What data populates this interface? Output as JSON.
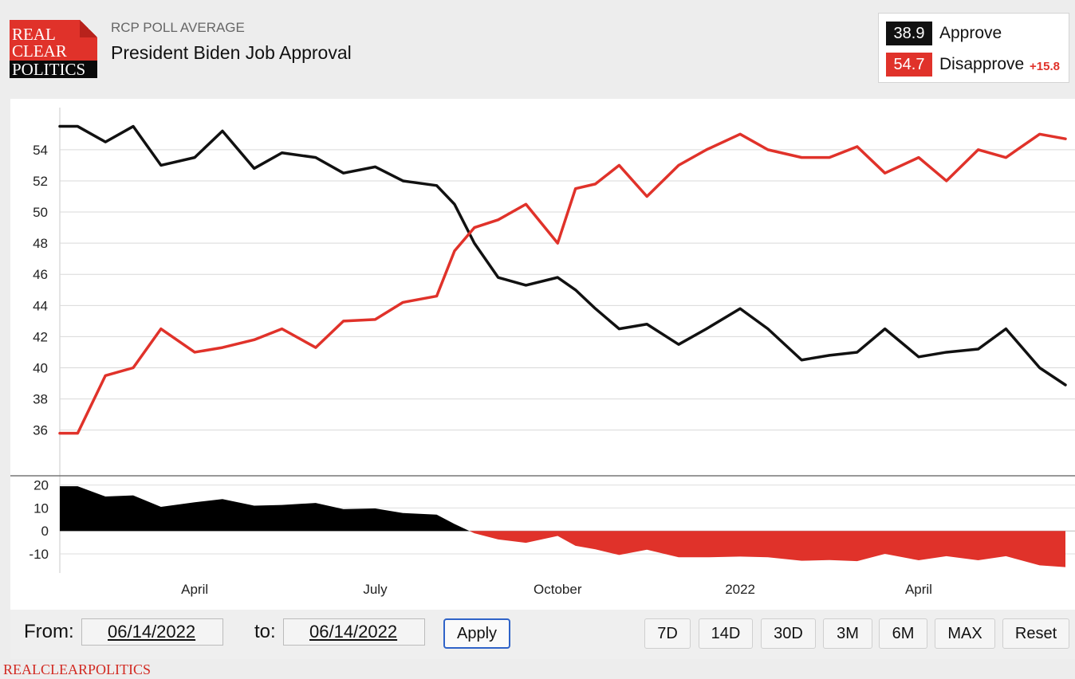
{
  "header": {
    "logo_lines": [
      "REAL",
      "CLEAR",
      "POLITICS"
    ],
    "kicker": "RCP POLL AVERAGE",
    "title": "President Biden Job Approval"
  },
  "legend": {
    "approve": {
      "value": "38.9",
      "label": "Approve",
      "color": "#111111"
    },
    "disapprove": {
      "value": "54.7",
      "label": "Disapprove",
      "color": "#e0322a"
    },
    "spread": "+15.8"
  },
  "controls": {
    "from_label": "From:",
    "from_value": "06/14/2022",
    "to_label": "to:",
    "to_value": "06/14/2022",
    "apply_label": "Apply",
    "range_buttons": [
      "7D",
      "14D",
      "30D",
      "3M",
      "6M",
      "MAX",
      "Reset"
    ]
  },
  "footer": "REALCLEARPOLITICS",
  "chart_data": [
    {
      "type": "line",
      "x_tick_labels": [
        "April",
        "July",
        "October",
        "2022",
        "April"
      ],
      "x": [
        "2021-01-23",
        "2021-02-01",
        "2021-02-15",
        "2021-03-01",
        "2021-03-15",
        "2021-04-01",
        "2021-04-15",
        "2021-05-01",
        "2021-05-15",
        "2021-06-01",
        "2021-06-15",
        "2021-07-01",
        "2021-07-15",
        "2021-08-01",
        "2021-08-10",
        "2021-08-20",
        "2021-09-01",
        "2021-09-15",
        "2021-10-01",
        "2021-10-10",
        "2021-10-20",
        "2021-11-01",
        "2021-11-15",
        "2021-12-01",
        "2021-12-15",
        "2022-01-01",
        "2022-01-15",
        "2022-02-01",
        "2022-02-15",
        "2022-03-01",
        "2022-03-15",
        "2022-04-01",
        "2022-04-15",
        "2022-05-01",
        "2022-05-15",
        "2022-06-01",
        "2022-06-14"
      ],
      "series": [
        {
          "name": "Approve",
          "color": "#111111",
          "values": [
            55.5,
            55.5,
            54.5,
            55.5,
            53.0,
            53.5,
            55.2,
            52.8,
            53.8,
            53.5,
            52.5,
            52.9,
            52.0,
            51.7,
            50.5,
            48.0,
            45.8,
            45.3,
            45.8,
            45.0,
            43.8,
            42.5,
            42.8,
            41.5,
            42.5,
            43.8,
            42.5,
            40.5,
            40.8,
            41.0,
            42.5,
            40.7,
            41.0,
            41.2,
            42.5,
            40.0,
            38.9
          ]
        },
        {
          "name": "Disapprove",
          "color": "#e0322a",
          "values": [
            35.8,
            35.8,
            39.5,
            40.0,
            42.5,
            41.0,
            41.3,
            41.8,
            42.5,
            41.3,
            43.0,
            43.1,
            44.2,
            44.6,
            47.5,
            49.0,
            49.5,
            50.5,
            48.0,
            51.5,
            51.8,
            53.0,
            51.0,
            53.0,
            54.0,
            55.0,
            54.0,
            53.5,
            53.5,
            54.2,
            52.5,
            53.5,
            52.0,
            54.0,
            53.5,
            55.0,
            54.7
          ]
        }
      ],
      "ylim": [
        34.5,
        56.5
      ],
      "y_ticks": [
        36,
        38,
        40,
        42,
        44,
        46,
        48,
        50,
        52,
        54
      ],
      "grid": true
    },
    {
      "type": "area",
      "x": [
        "2021-01-23",
        "2021-02-01",
        "2021-02-15",
        "2021-03-01",
        "2021-03-15",
        "2021-04-01",
        "2021-04-15",
        "2021-05-01",
        "2021-05-15",
        "2021-06-01",
        "2021-06-15",
        "2021-07-01",
        "2021-07-15",
        "2021-08-01",
        "2021-08-10",
        "2021-08-20",
        "2021-09-01",
        "2021-09-15",
        "2021-10-01",
        "2021-10-10",
        "2021-10-20",
        "2021-11-01",
        "2021-11-15",
        "2021-12-01",
        "2021-12-15",
        "2022-01-01",
        "2022-01-15",
        "2022-02-01",
        "2022-02-15",
        "2022-03-01",
        "2022-03-15",
        "2022-04-01",
        "2022-04-15",
        "2022-05-01",
        "2022-05-15",
        "2022-06-01",
        "2022-06-14"
      ],
      "values": [
        19.5,
        19.5,
        15.0,
        15.5,
        10.5,
        12.5,
        13.9,
        11.0,
        11.3,
        12.2,
        9.5,
        9.8,
        7.8,
        7.1,
        3.0,
        -1.0,
        -3.7,
        -5.2,
        -2.2,
        -6.5,
        -8.0,
        -10.5,
        -8.2,
        -11.5,
        -11.5,
        -11.2,
        -11.5,
        -13.0,
        -12.7,
        -13.2,
        -10.0,
        -12.8,
        -11.0,
        -12.8,
        -11.0,
        -15.0,
        -15.8
      ],
      "positive_color": "#000000",
      "negative_color": "#e0322a",
      "ylim": [
        -18,
        23
      ],
      "y_ticks": [
        20,
        10,
        0,
        -10
      ],
      "grid": true
    }
  ]
}
